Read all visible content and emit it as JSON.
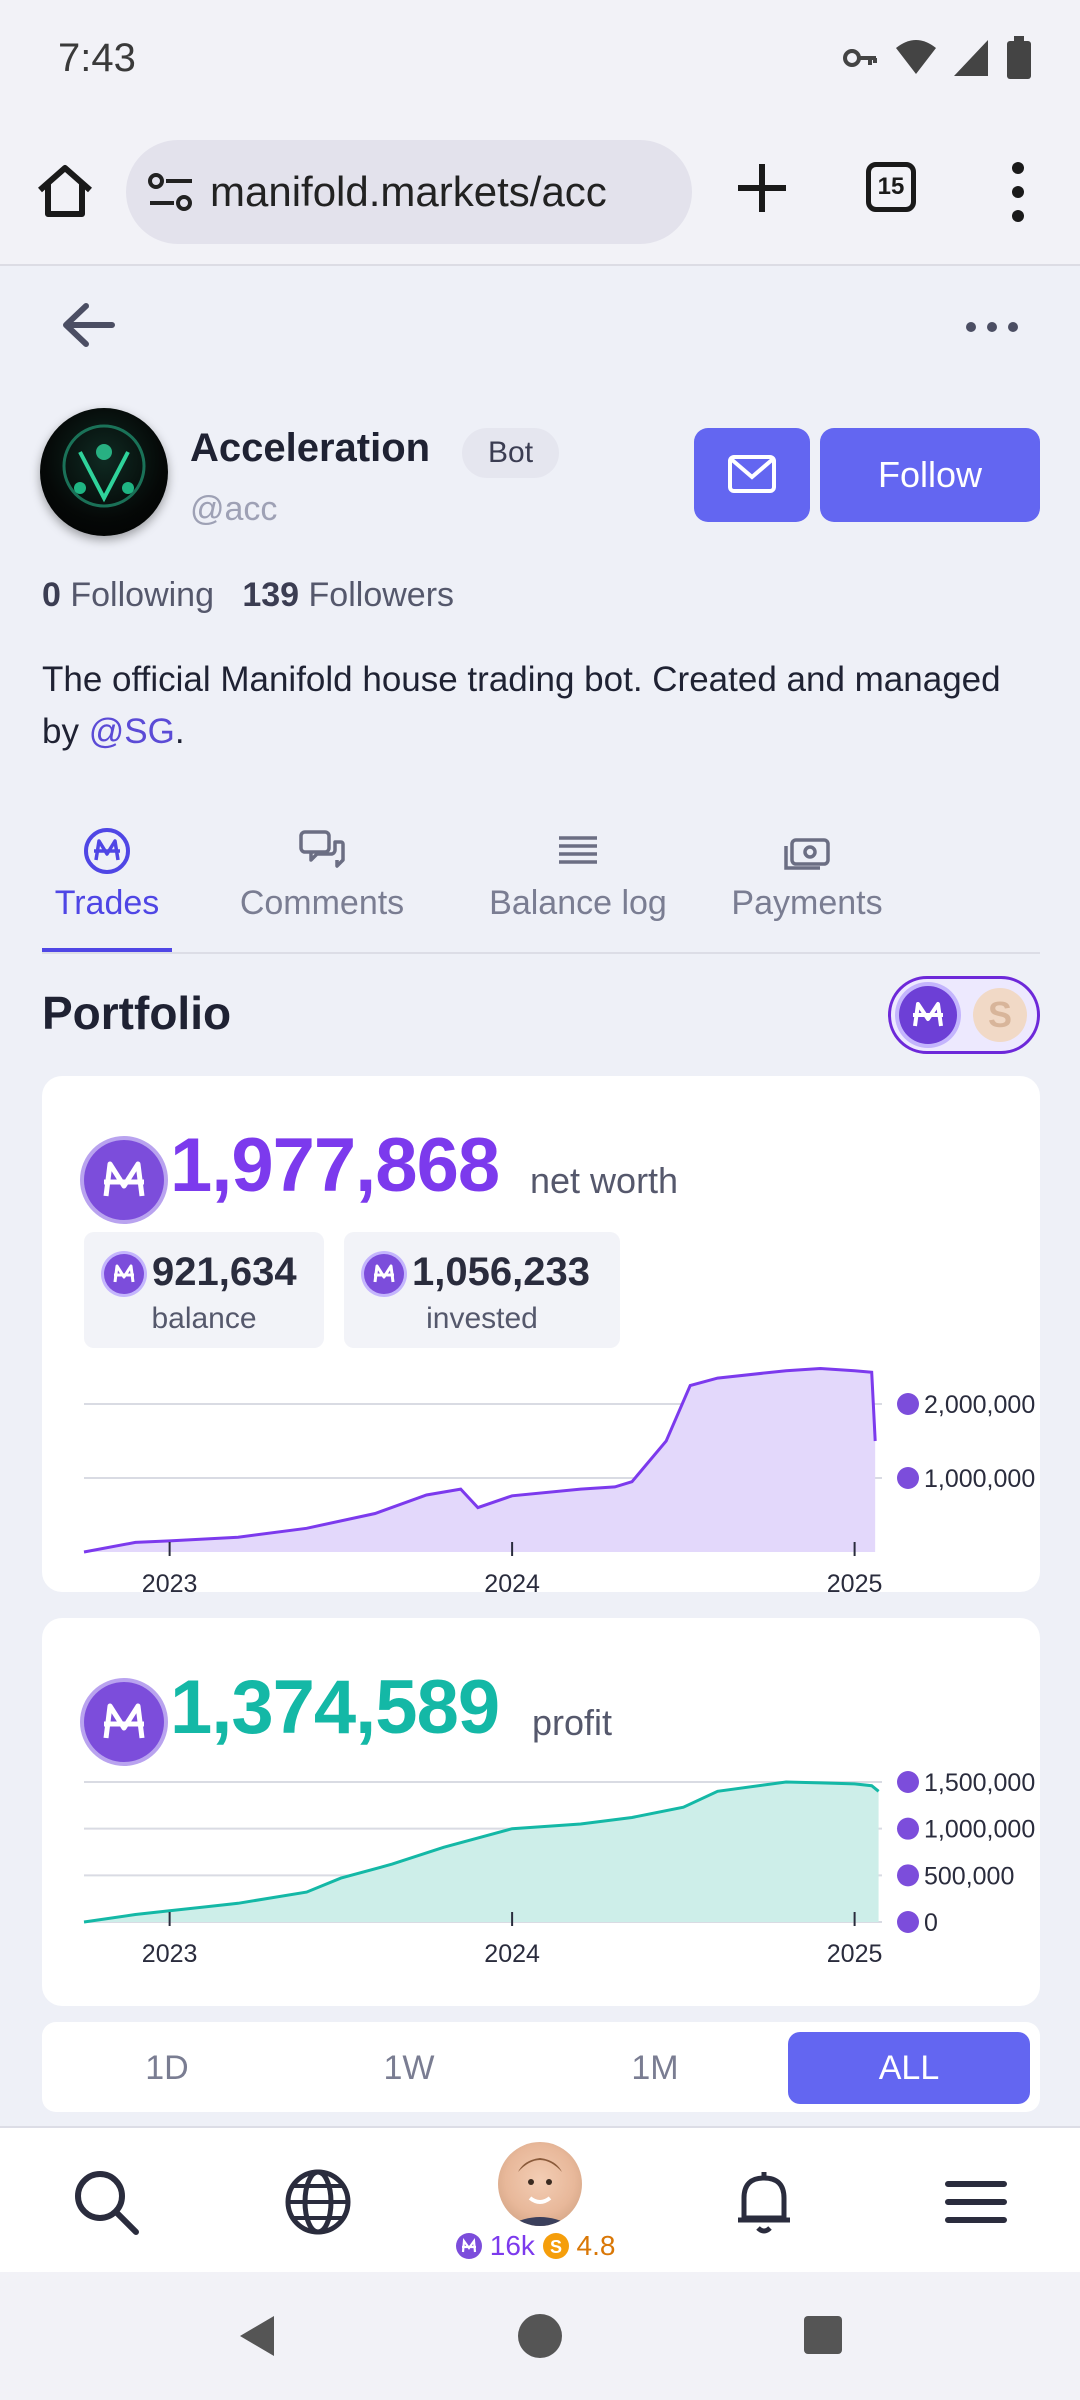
{
  "status": {
    "time": "7:43"
  },
  "browser": {
    "url": "manifold.markets/acc",
    "tab_count": "15"
  },
  "profile": {
    "name": "Acceleration",
    "badge": "Bot",
    "handle": "@acc",
    "following_count": "0",
    "following_label": "Following",
    "followers_count": "139",
    "followers_label": "Followers",
    "bio_text": "The official Manifold house trading bot. Created and managed by ",
    "bio_mention": "@SG",
    "bio_end": ".",
    "follow_label": "Follow"
  },
  "tabs": [
    {
      "label": "Trades",
      "icon": "mana-coin-icon",
      "active": true
    },
    {
      "label": "Comments",
      "icon": "chat-bubbles-icon",
      "active": false
    },
    {
      "label": "Balance log",
      "icon": "list-lines-icon",
      "active": false
    },
    {
      "label": "Payments",
      "icon": "cash-icon",
      "active": false
    }
  ],
  "portfolio": {
    "title": "Portfolio",
    "net_worth": "1,977,868",
    "net_worth_label": "net worth",
    "balance": "921,634",
    "balance_label": "balance",
    "invested": "1,056,233",
    "invested_label": "invested",
    "profit": "1,374,589",
    "profit_label": "profit"
  },
  "periods": [
    {
      "label": "1D",
      "active": false
    },
    {
      "label": "1W",
      "active": false
    },
    {
      "label": "1M",
      "active": false
    },
    {
      "label": "ALL",
      "active": true
    }
  ],
  "bottom_nav": {
    "mana": "16k",
    "sweep": "4.8"
  },
  "colors": {
    "accent": "#6366f1",
    "net_worth": "#7c3aed",
    "profit": "#14b8a6"
  },
  "chart_data": [
    {
      "type": "area",
      "x_ticks": [
        "2023",
        "2024",
        "2025"
      ],
      "y_ticks": [
        "2,000,000",
        "1,000,000"
      ],
      "series": [
        {
          "x": [
            2022.75,
            2022.9,
            2023.0,
            2023.2,
            2023.4,
            2023.6,
            2023.75,
            2023.85,
            2023.9,
            2024.0,
            2024.2,
            2024.3,
            2024.35,
            2024.45,
            2024.52,
            2024.6,
            2024.8,
            2024.9,
            2025.0,
            2025.05,
            2025.06
          ],
          "y": [
            0,
            130000,
            150000,
            200000,
            320000,
            520000,
            770000,
            850000,
            600000,
            760000,
            850000,
            880000,
            950000,
            1500000,
            2250000,
            2350000,
            2450000,
            2480000,
            2450000,
            2430000,
            1500000
          ]
        }
      ]
    },
    {
      "type": "area",
      "x_ticks": [
        "2023",
        "2024",
        "2025"
      ],
      "y_ticks": [
        "1,500,000",
        "1,000,000",
        "500,000",
        "0"
      ],
      "series": [
        {
          "x": [
            2022.75,
            2022.9,
            2023.0,
            2023.2,
            2023.4,
            2023.5,
            2023.65,
            2023.8,
            2024.0,
            2024.2,
            2024.35,
            2024.5,
            2024.6,
            2024.8,
            2024.9,
            2025.0,
            2025.05,
            2025.07
          ],
          "y": [
            0,
            80000,
            120000,
            200000,
            320000,
            470000,
            620000,
            800000,
            1000000,
            1050000,
            1120000,
            1230000,
            1400000,
            1500000,
            1490000,
            1480000,
            1460000,
            1400000
          ]
        }
      ]
    }
  ]
}
